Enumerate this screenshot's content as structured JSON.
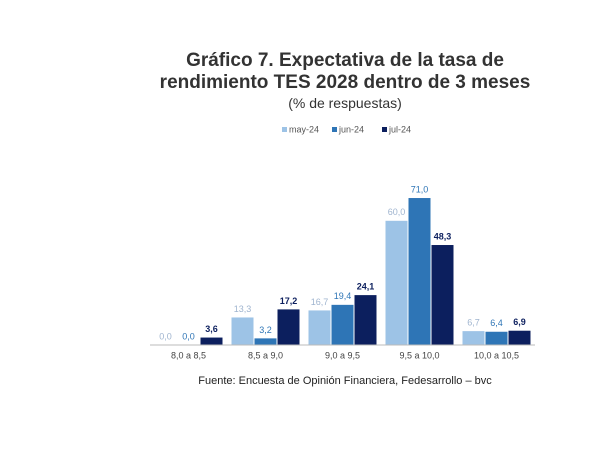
{
  "chart_data": {
    "type": "bar",
    "title": "Gráfico 7. Expectativa de la tasa de rendimiento TES 2028 dentro de 3 meses",
    "subtitle": "(% de respuestas)",
    "categories": [
      "8,0 a 8,5",
      "8,5 a 9,0",
      "9,0 a 9,5",
      "9,5 a 10,0",
      "10,0 a 10,5"
    ],
    "series": [
      {
        "name": "may-24",
        "color": "#9dc3e6",
        "values": [
          0.0,
          13.3,
          16.7,
          60.0,
          6.7
        ],
        "value_labels": [
          "0,0",
          "13,3",
          "16,7",
          "60,0",
          "6,7"
        ]
      },
      {
        "name": "jun-24",
        "color": "#2e75b6",
        "values": [
          0.0,
          3.2,
          19.4,
          71.0,
          6.4
        ],
        "value_labels": [
          "0,0",
          "3,2",
          "19,4",
          "71,0",
          "6,4"
        ]
      },
      {
        "name": "jul-24",
        "color": "#0c1f5e",
        "values": [
          3.6,
          17.2,
          24.1,
          48.3,
          6.9
        ],
        "value_labels": [
          "3,6",
          "17,2",
          "24,1",
          "48,3",
          "6,9"
        ]
      }
    ],
    "source": "Fuente: Encuesta de Opinión Financiera, Fedesarrollo – bvc"
  }
}
